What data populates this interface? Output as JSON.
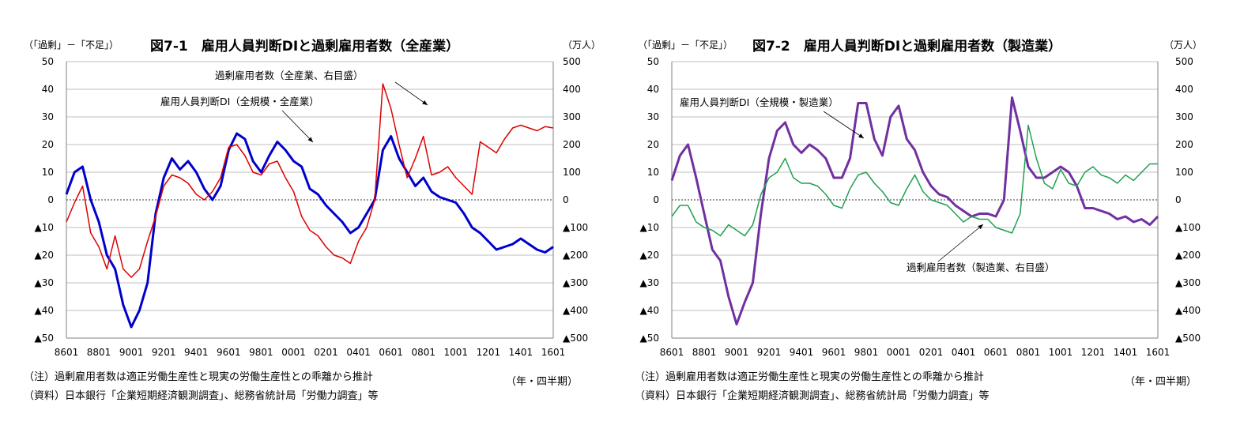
{
  "chart_data": [
    {
      "type": "line",
      "title": "図7-1　雇用人員判断DIと過剰雇用者数（全産業）",
      "ylabel": "（「過剰」－「不足」）",
      "y2label": "（万人）",
      "xlabel": "（年・四半期）",
      "x_tick_labels": [
        "8601",
        "8801",
        "9001",
        "9201",
        "9401",
        "9601",
        "9801",
        "0001",
        "0201",
        "0401",
        "0601",
        "0801",
        "1001",
        "1201",
        "1401",
        "1601"
      ],
      "y_tick_labels": [
        "50",
        "40",
        "30",
        "20",
        "10",
        "0",
        "▲10",
        "▲20",
        "▲30",
        "▲40",
        "▲50"
      ],
      "y2_tick_labels": [
        "500",
        "400",
        "300",
        "200",
        "100",
        "0",
        "▲100",
        "▲200",
        "▲300",
        "▲400",
        "▲500"
      ],
      "ylim": [
        -50,
        50
      ],
      "y2lim": [
        -500,
        500
      ],
      "x_range": [
        "1986Q1",
        "2016Q1"
      ],
      "grid": true,
      "annotations": [
        "過剰雇用者数（全産業、右目盛）",
        "雇用人員判断DI（全規模・全産業）"
      ],
      "notes": [
        "（注）過剰雇用者数は適正労働生産性と現実の労働生産性との乖離から推計",
        "（資料）日本銀行「企業短期経済観測調査」、総務省統計局「労働力調査」等"
      ],
      "series": [
        {
          "axis": "left",
          "color": "#0000cc",
          "x": [
            1986.0,
            1986.5,
            1987.0,
            1987.5,
            1988.0,
            1988.5,
            1989.0,
            1989.5,
            1990.0,
            1990.5,
            1991.0,
            1991.5,
            1992.0,
            1992.5,
            1993.0,
            1993.5,
            1994.0,
            1994.5,
            1995.0,
            1995.5,
            1996.0,
            1996.5,
            1997.0,
            1997.5,
            1998.0,
            1998.5,
            1999.0,
            1999.5,
            2000.0,
            2000.5,
            2001.0,
            2001.5,
            2002.0,
            2002.5,
            2003.0,
            2003.5,
            2004.0,
            2004.5,
            2005.0,
            2005.5,
            2006.0,
            2006.5,
            2007.0,
            2007.5,
            2008.0,
            2008.5,
            2009.0,
            2009.5,
            2010.0,
            2010.5,
            2011.0,
            2011.5,
            2012.0,
            2012.5,
            2013.0,
            2013.5,
            2014.0,
            2014.5,
            2015.0,
            2015.5,
            2016.0
          ],
          "values": [
            2,
            10,
            12,
            0,
            -8,
            -20,
            -25,
            -38,
            -46,
            -40,
            -30,
            -5,
            8,
            15,
            11,
            14,
            10,
            4,
            0,
            5,
            18,
            24,
            22,
            14,
            10,
            16,
            21,
            18,
            14,
            12,
            4,
            2,
            -2,
            -5,
            -8,
            -12,
            -10,
            -5,
            0,
            18,
            23,
            15,
            10,
            5,
            8,
            3,
            1,
            0,
            -1,
            -5,
            -10,
            -12,
            -15,
            -18,
            -17,
            -16,
            -14,
            -16,
            -18,
            -19,
            -17
          ]
        },
        {
          "axis": "right",
          "color": "#dd0000",
          "x": [
            1986.0,
            1986.5,
            1987.0,
            1987.5,
            1988.0,
            1988.5,
            1989.0,
            1989.5,
            1990.0,
            1990.5,
            1991.0,
            1991.5,
            1992.0,
            1992.5,
            1993.0,
            1993.5,
            1994.0,
            1994.5,
            1995.0,
            1995.5,
            1996.0,
            1996.5,
            1997.0,
            1997.5,
            1998.0,
            1998.5,
            1999.0,
            1999.5,
            2000.0,
            2000.5,
            2001.0,
            2001.5,
            2002.0,
            2002.5,
            2003.0,
            2003.5,
            2004.0,
            2004.5,
            2005.0,
            2005.5,
            2006.0,
            2006.5,
            2007.0,
            2007.5,
            2008.0,
            2008.5,
            2009.0,
            2009.5,
            2010.0,
            2010.5,
            2011.0,
            2011.5,
            2012.0,
            2012.5,
            2013.0,
            2013.5,
            2014.0,
            2014.5,
            2015.0,
            2015.5,
            2016.0
          ],
          "values": [
            -80,
            -10,
            50,
            -120,
            -170,
            -250,
            -130,
            -250,
            -280,
            -250,
            -150,
            -60,
            50,
            90,
            80,
            60,
            20,
            0,
            30,
            80,
            190,
            200,
            160,
            100,
            90,
            130,
            140,
            80,
            30,
            -60,
            -110,
            -130,
            -170,
            -200,
            -210,
            -230,
            -150,
            -100,
            0,
            420,
            330,
            200,
            80,
            150,
            230,
            90,
            100,
            120,
            80,
            50,
            20,
            210,
            190,
            170,
            220,
            260,
            270,
            260,
            250,
            265,
            260
          ]
        }
      ]
    },
    {
      "type": "line",
      "title": "図7-2　雇用人員判断DIと過剰雇用者数（製造業）",
      "ylabel": "（「過剰」－「不足」）",
      "y2label": "（万人）",
      "xlabel": "（年・四半期）",
      "x_tick_labels": [
        "8601",
        "8801",
        "9001",
        "9201",
        "9401",
        "9601",
        "9801",
        "0001",
        "0201",
        "0401",
        "0601",
        "0801",
        "1001",
        "1201",
        "1401",
        "1601"
      ],
      "y_tick_labels": [
        "50",
        "40",
        "30",
        "20",
        "10",
        "0",
        "▲10",
        "▲20",
        "▲30",
        "▲40",
        "▲50"
      ],
      "y2_tick_labels": [
        "500",
        "400",
        "300",
        "200",
        "100",
        "0",
        "▲100",
        "▲200",
        "▲300",
        "▲400",
        "▲500"
      ],
      "ylim": [
        -50,
        50
      ],
      "y2lim": [
        -500,
        500
      ],
      "x_range": [
        "1986Q1",
        "2016Q1"
      ],
      "grid": true,
      "annotations": [
        "雇用人員判断DI（全規模・製造業）",
        "過剰雇用者数（製造業、右目盛）"
      ],
      "notes": [
        "（注）過剰雇用者数は適正労働生産性と現実の労働生産性との乖離から推計",
        "（資料）日本銀行「企業短期経済観測調査」、総務省統計局「労働力調査」等"
      ],
      "series": [
        {
          "axis": "left",
          "color": "#7030a0",
          "x": [
            1986.0,
            1986.5,
            1987.0,
            1987.5,
            1988.0,
            1988.5,
            1989.0,
            1989.5,
            1990.0,
            1990.5,
            1991.0,
            1991.5,
            1992.0,
            1992.5,
            1993.0,
            1993.5,
            1994.0,
            1994.5,
            1995.0,
            1995.5,
            1996.0,
            1996.5,
            1997.0,
            1997.5,
            1998.0,
            1998.5,
            1999.0,
            1999.5,
            2000.0,
            2000.5,
            2001.0,
            2001.5,
            2002.0,
            2002.5,
            2003.0,
            2003.5,
            2004.0,
            2004.5,
            2005.0,
            2005.5,
            2006.0,
            2006.5,
            2007.0,
            2007.5,
            2008.0,
            2008.5,
            2009.0,
            2009.5,
            2010.0,
            2010.5,
            2011.0,
            2011.5,
            2012.0,
            2012.5,
            2013.0,
            2013.5,
            2014.0,
            2014.5,
            2015.0,
            2015.5,
            2016.0
          ],
          "values": [
            7,
            16,
            20,
            8,
            -5,
            -18,
            -22,
            -35,
            -45,
            -37,
            -30,
            -5,
            15,
            25,
            28,
            20,
            17,
            20,
            18,
            15,
            8,
            8,
            15,
            35,
            35,
            22,
            16,
            30,
            34,
            22,
            18,
            10,
            5,
            2,
            1,
            -2,
            -4,
            -6,
            -5,
            -5,
            -6,
            0,
            37,
            25,
            12,
            8,
            8,
            10,
            12,
            10,
            5,
            -3,
            -3,
            -4,
            -5,
            -7,
            -6,
            -8,
            -7,
            -9,
            -6
          ]
        },
        {
          "axis": "right",
          "color": "#20a050",
          "x": [
            1986.0,
            1986.5,
            1987.0,
            1987.5,
            1988.0,
            1988.5,
            1989.0,
            1989.5,
            1990.0,
            1990.5,
            1991.0,
            1991.5,
            1992.0,
            1992.5,
            1993.0,
            1993.5,
            1994.0,
            1994.5,
            1995.0,
            1995.5,
            1996.0,
            1996.5,
            1997.0,
            1997.5,
            1998.0,
            1998.5,
            1999.0,
            1999.5,
            2000.0,
            2000.5,
            2001.0,
            2001.5,
            2002.0,
            2002.5,
            2003.0,
            2003.5,
            2004.0,
            2004.5,
            2005.0,
            2005.5,
            2006.0,
            2006.5,
            2007.0,
            2007.5,
            2008.0,
            2008.5,
            2009.0,
            2009.5,
            2010.0,
            2010.5,
            2011.0,
            2011.5,
            2012.0,
            2012.5,
            2013.0,
            2013.5,
            2014.0,
            2014.5,
            2015.0,
            2015.5,
            2016.0
          ],
          "values": [
            -60,
            -20,
            -20,
            -80,
            -100,
            -110,
            -130,
            -90,
            -110,
            -130,
            -90,
            20,
            80,
            100,
            150,
            80,
            60,
            60,
            50,
            20,
            -20,
            -30,
            40,
            90,
            100,
            60,
            30,
            -10,
            -20,
            40,
            90,
            30,
            0,
            -10,
            -20,
            -50,
            -80,
            -60,
            -70,
            -70,
            -100,
            -110,
            -120,
            -50,
            270,
            150,
            60,
            40,
            110,
            60,
            50,
            100,
            120,
            90,
            80,
            60,
            90,
            70,
            100,
            130,
            130
          ]
        }
      ]
    }
  ]
}
